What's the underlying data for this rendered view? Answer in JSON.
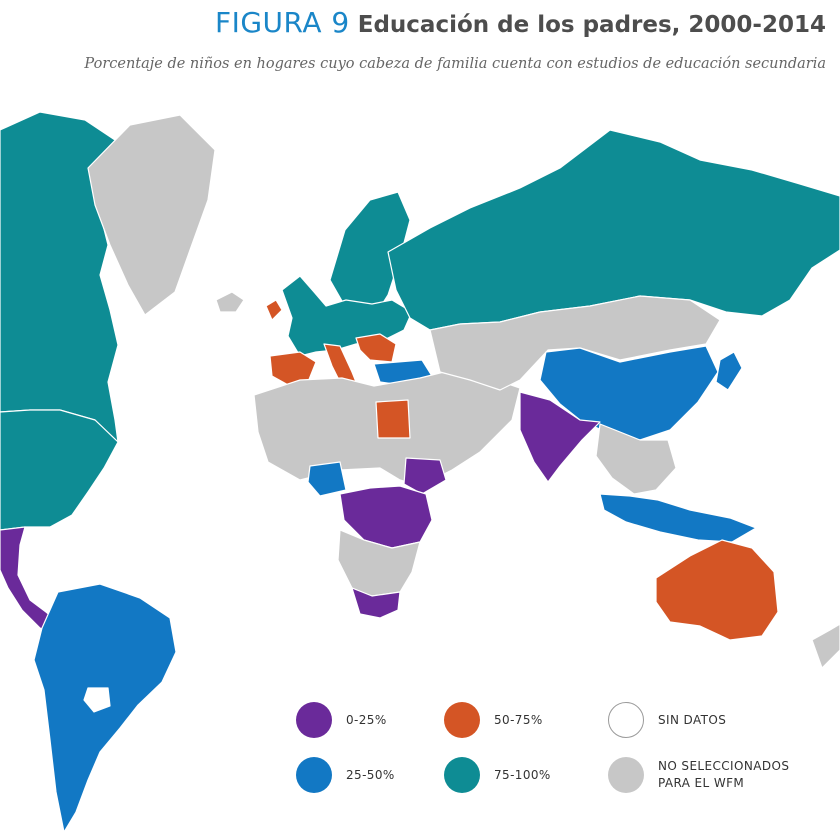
{
  "figure": {
    "label": "FIGURA 9",
    "title": "Educación de los padres, 2000-2014"
  },
  "subtitle": "Porcentaje de niños en hogares cuyo cabeza de familia cuenta con estudios de educación secundaria",
  "colors": {
    "label_blue": "#1a86c8",
    "range_0_25": "#6a2a9a",
    "range_25_50": "#1278c4",
    "range_50_75": "#d45525",
    "range_75_100": "#0e8c94",
    "no_data": "#ffffff",
    "not_selected": "#c7c7c7"
  },
  "legend": {
    "range_0_25": "0-25%",
    "range_25_50": "25-50%",
    "range_50_75": "50-75%",
    "range_75_100": "75-100%",
    "no_data": "SIN DATOS",
    "not_selected": "NO SELECCIONADOS\nPARA EL WFM"
  },
  "regions": [
    {
      "name": "canada",
      "category": "range_75_100"
    },
    {
      "name": "usa",
      "category": "range_75_100"
    },
    {
      "name": "greenland",
      "category": "not_selected"
    },
    {
      "name": "iceland",
      "category": "not_selected"
    },
    {
      "name": "mexico-central-america",
      "category": "range_0_25"
    },
    {
      "name": "south-america",
      "category": "range_25_50"
    },
    {
      "name": "paraguay",
      "category": "no_data"
    },
    {
      "name": "europe",
      "category": "range_75_100"
    },
    {
      "name": "scandinavia",
      "category": "range_75_100"
    },
    {
      "name": "ireland",
      "category": "range_50_75"
    },
    {
      "name": "iberia",
      "category": "range_50_75"
    },
    {
      "name": "italy",
      "category": "range_50_75"
    },
    {
      "name": "balkans",
      "category": "range_50_75"
    },
    {
      "name": "turkey",
      "category": "range_25_50"
    },
    {
      "name": "russia",
      "category": "range_75_100"
    },
    {
      "name": "north-africa-middle-east",
      "category": "not_selected"
    },
    {
      "name": "egypt",
      "category": "range_50_75"
    },
    {
      "name": "nigeria",
      "category": "range_25_50"
    },
    {
      "name": "ethiopia",
      "category": "range_0_25"
    },
    {
      "name": "central-east-africa",
      "category": "range_0_25"
    },
    {
      "name": "southern-africa",
      "category": "not_selected"
    },
    {
      "name": "south-africa",
      "category": "range_0_25"
    },
    {
      "name": "central-asia",
      "category": "not_selected"
    },
    {
      "name": "india",
      "category": "range_0_25"
    },
    {
      "name": "china",
      "category": "range_25_50"
    },
    {
      "name": "japan",
      "category": "range_25_50"
    },
    {
      "name": "southeast-asia",
      "category": "not_selected"
    },
    {
      "name": "indonesia",
      "category": "range_25_50"
    },
    {
      "name": "australia",
      "category": "range_50_75"
    }
  ]
}
